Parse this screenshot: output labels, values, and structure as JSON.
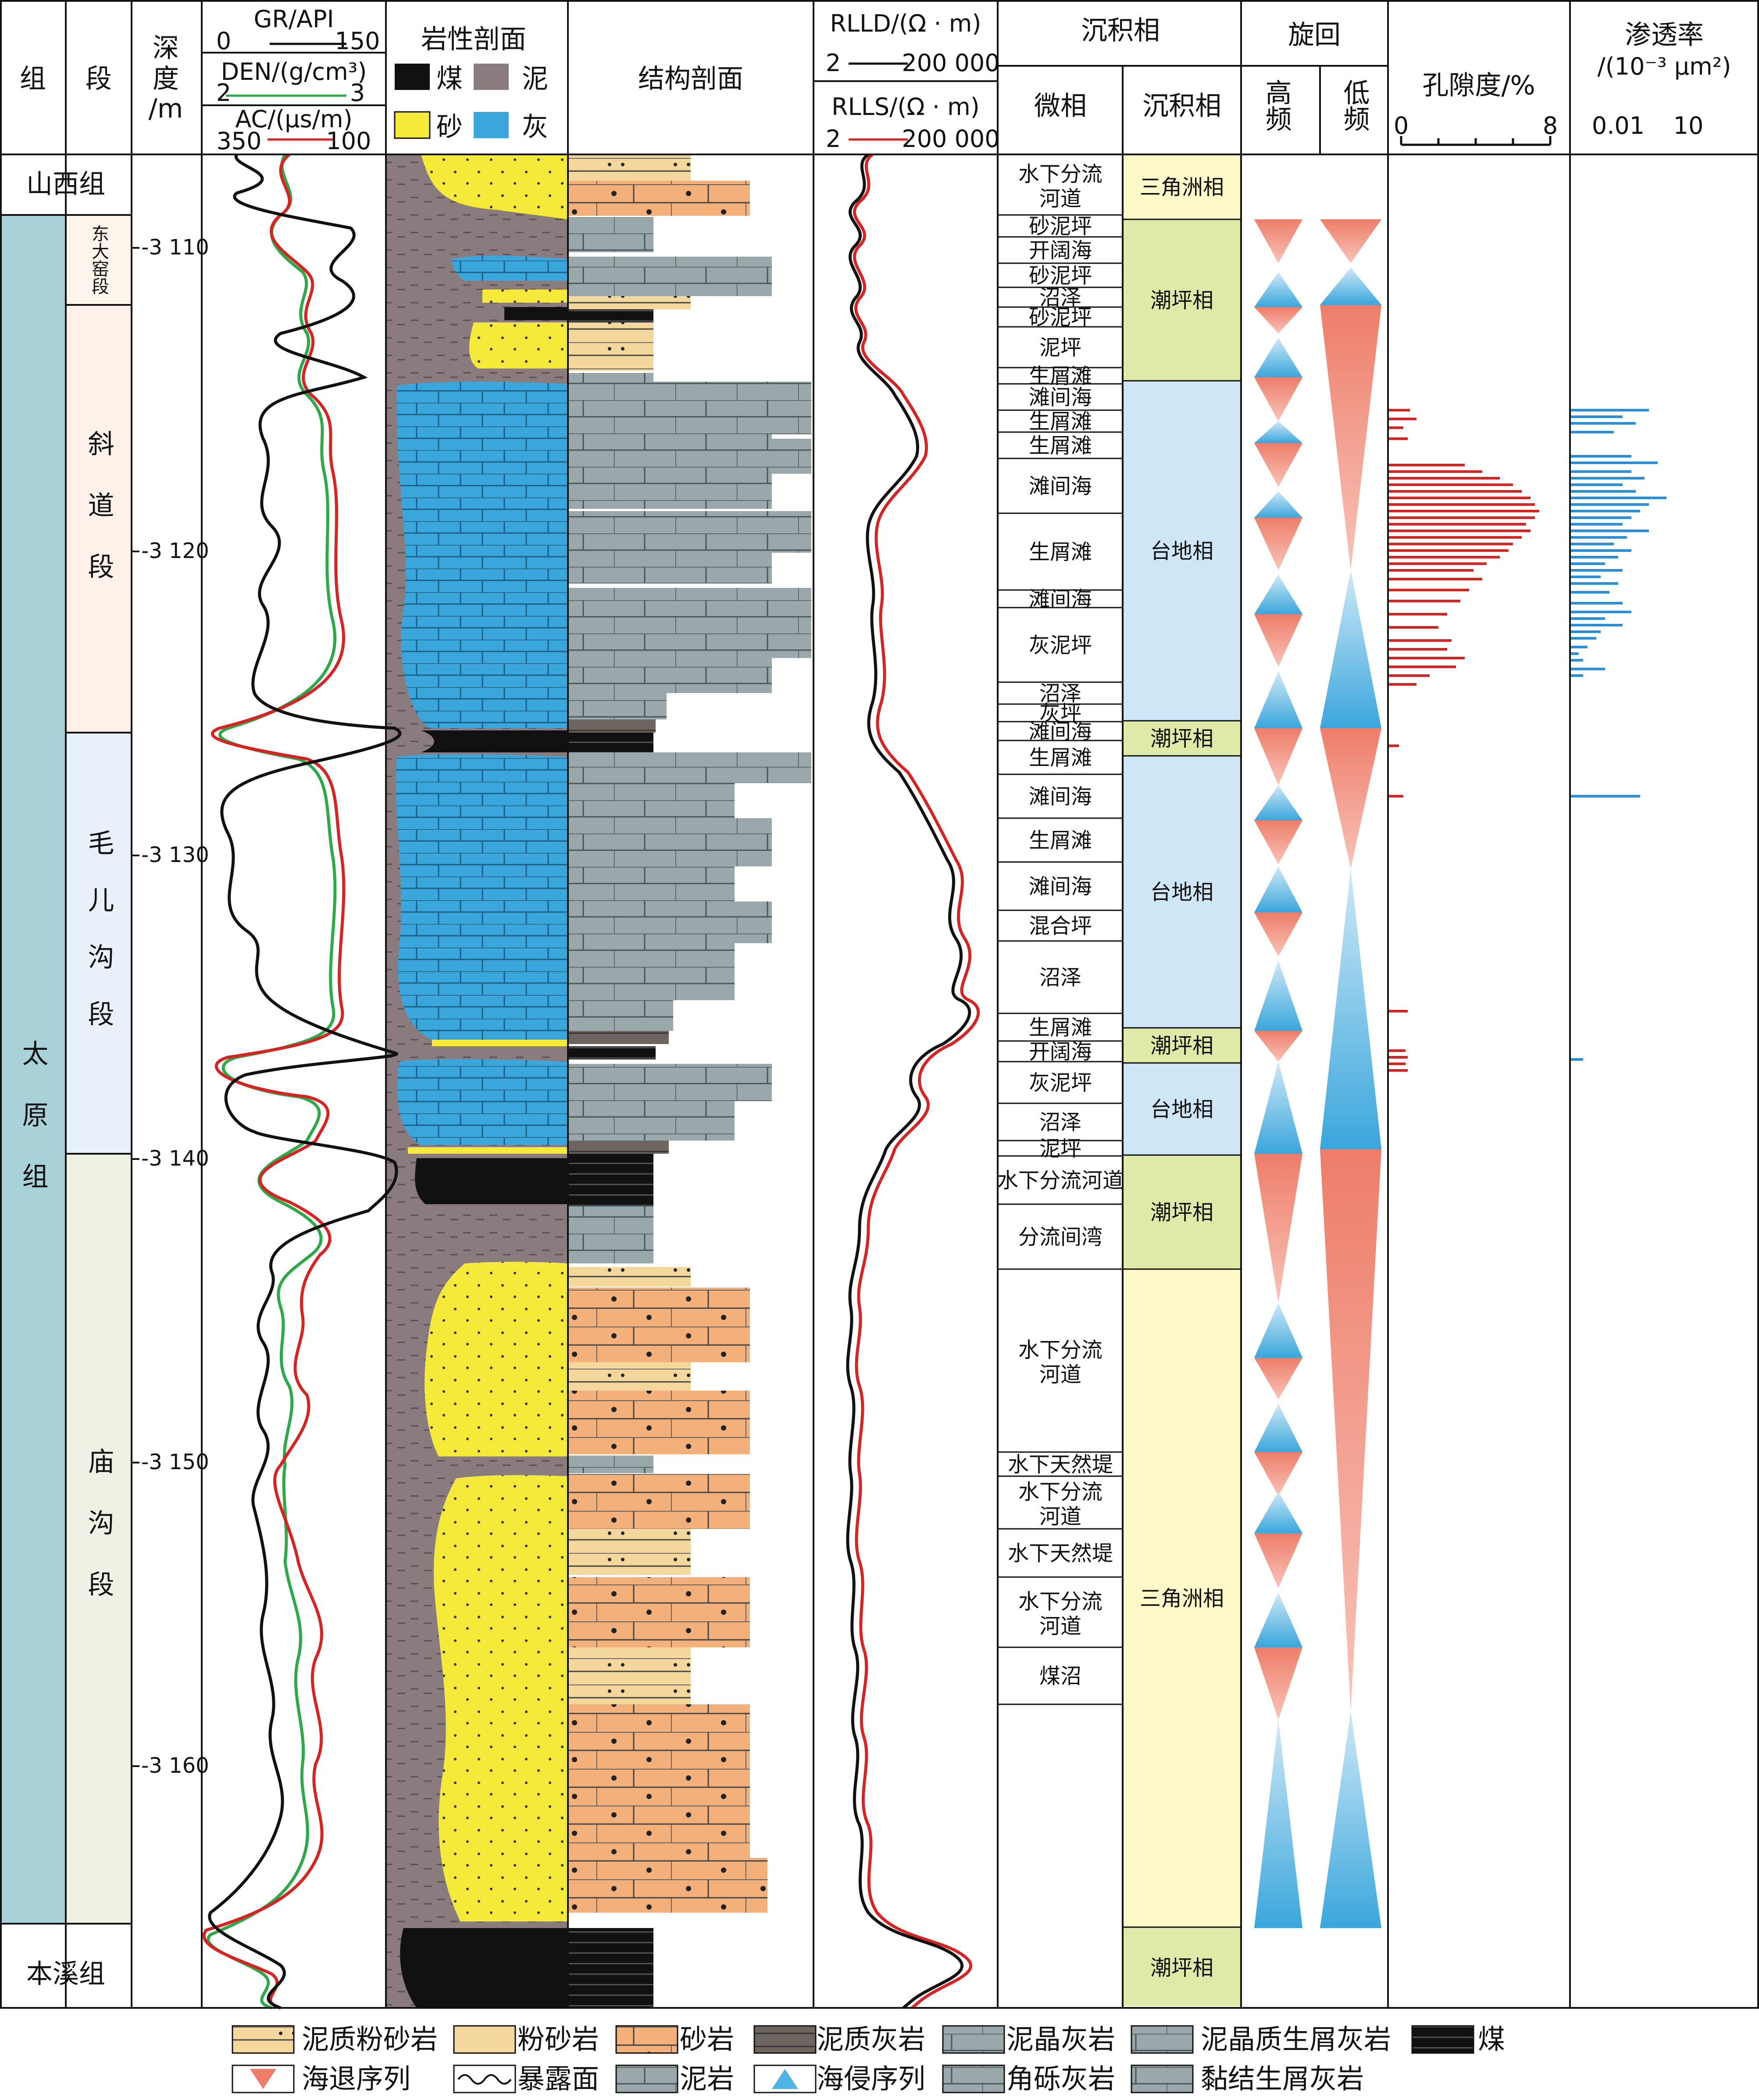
{
  "header": {
    "formation": "组",
    "member": "段",
    "depth": [
      "深",
      "度",
      "/m"
    ],
    "logs_left": {
      "gr": "GR/API",
      "gr_range": [
        "0",
        "150"
      ],
      "den": "DEN/(g/cm³)",
      "den_range": [
        "2",
        "3"
      ],
      "ac": "AC/(μs/m)",
      "ac_range": [
        "350",
        "100"
      ]
    },
    "lithology": "岩性剖面",
    "lith_keys": [
      "煤",
      "泥",
      "砂",
      "灰"
    ],
    "structure": "结构剖面",
    "logs_right": {
      "rlld": "RLLD/(Ω · m)",
      "rlld_range": [
        "2",
        "200 000"
      ],
      "rlls": "RLLS/(Ω · m)",
      "rlls_range": [
        "2",
        "200 000"
      ]
    },
    "facies": "沉积相",
    "microfacies": "微相",
    "facies_sub": "沉积相",
    "cycle": "旋回",
    "cycle_high": "高频",
    "cycle_low": "低频",
    "porosity": "孔隙度/%",
    "porosity_range": [
      "0",
      "8"
    ],
    "permeability": "渗透率",
    "perm_unit": "/(10⁻³ μm²)",
    "perm_range": [
      "0.01",
      "10"
    ]
  },
  "formations": [
    "山西组",
    "太原组",
    "本溪组"
  ],
  "members": [
    "东大窑段",
    "斜道段",
    "毛儿沟段",
    "庙沟段"
  ],
  "depth_ticks": [
    "-3 110",
    "-3 120",
    "-3 130",
    "-3 140",
    "-3 150",
    "-3 160"
  ],
  "microfacies": [
    "水下分流河道",
    "砂泥坪",
    "开阔海",
    "砂泥坪",
    "沼泽",
    "砂泥坪",
    "泥坪",
    "生屑滩",
    "滩间海",
    "生屑滩",
    "生屑滩",
    "滩间海",
    "生屑滩",
    "滩间海",
    "灰泥坪",
    "沼泽",
    "灰坪",
    "滩间海",
    "生屑滩",
    "滩间海",
    "生屑滩",
    "滩间海",
    "混合坪",
    "沼泽",
    "生屑滩",
    "开阔海",
    "灰泥坪",
    "沼泽",
    "泥坪",
    "水下分流河道",
    "分流间湾",
    "水下分流河道",
    "水下天然堤",
    "水下分流河道",
    "水下天然堤",
    "水下分流河道",
    "煤沼"
  ],
  "facies": [
    "三角洲相",
    "潮坪相",
    "台地相",
    "潮坪相",
    "台地相",
    "潮坪相",
    "台地相",
    "潮坪相",
    "三角洲相",
    "潮坪相"
  ],
  "legend": {
    "row1": [
      "泥质粉砂岩",
      "粉砂岩",
      "砂岩",
      "泥质灰岩",
      "泥晶灰岩",
      "泥晶质生屑灰岩",
      "煤"
    ],
    "row2": [
      "海退序列",
      "暴露面",
      "泥岩",
      "海侵序列",
      "角砾灰岩",
      "黏结生屑灰岩"
    ]
  },
  "colors": {
    "sand": "#f5ea3a",
    "limestone": "#3aa6dc",
    "mud": "#8a7b7e",
    "coal": "#111111",
    "regression": "#ee7d6a",
    "transgression": "#4fb3e3",
    "porosity": "#d42424",
    "permeability": "#2b8fd6"
  }
}
